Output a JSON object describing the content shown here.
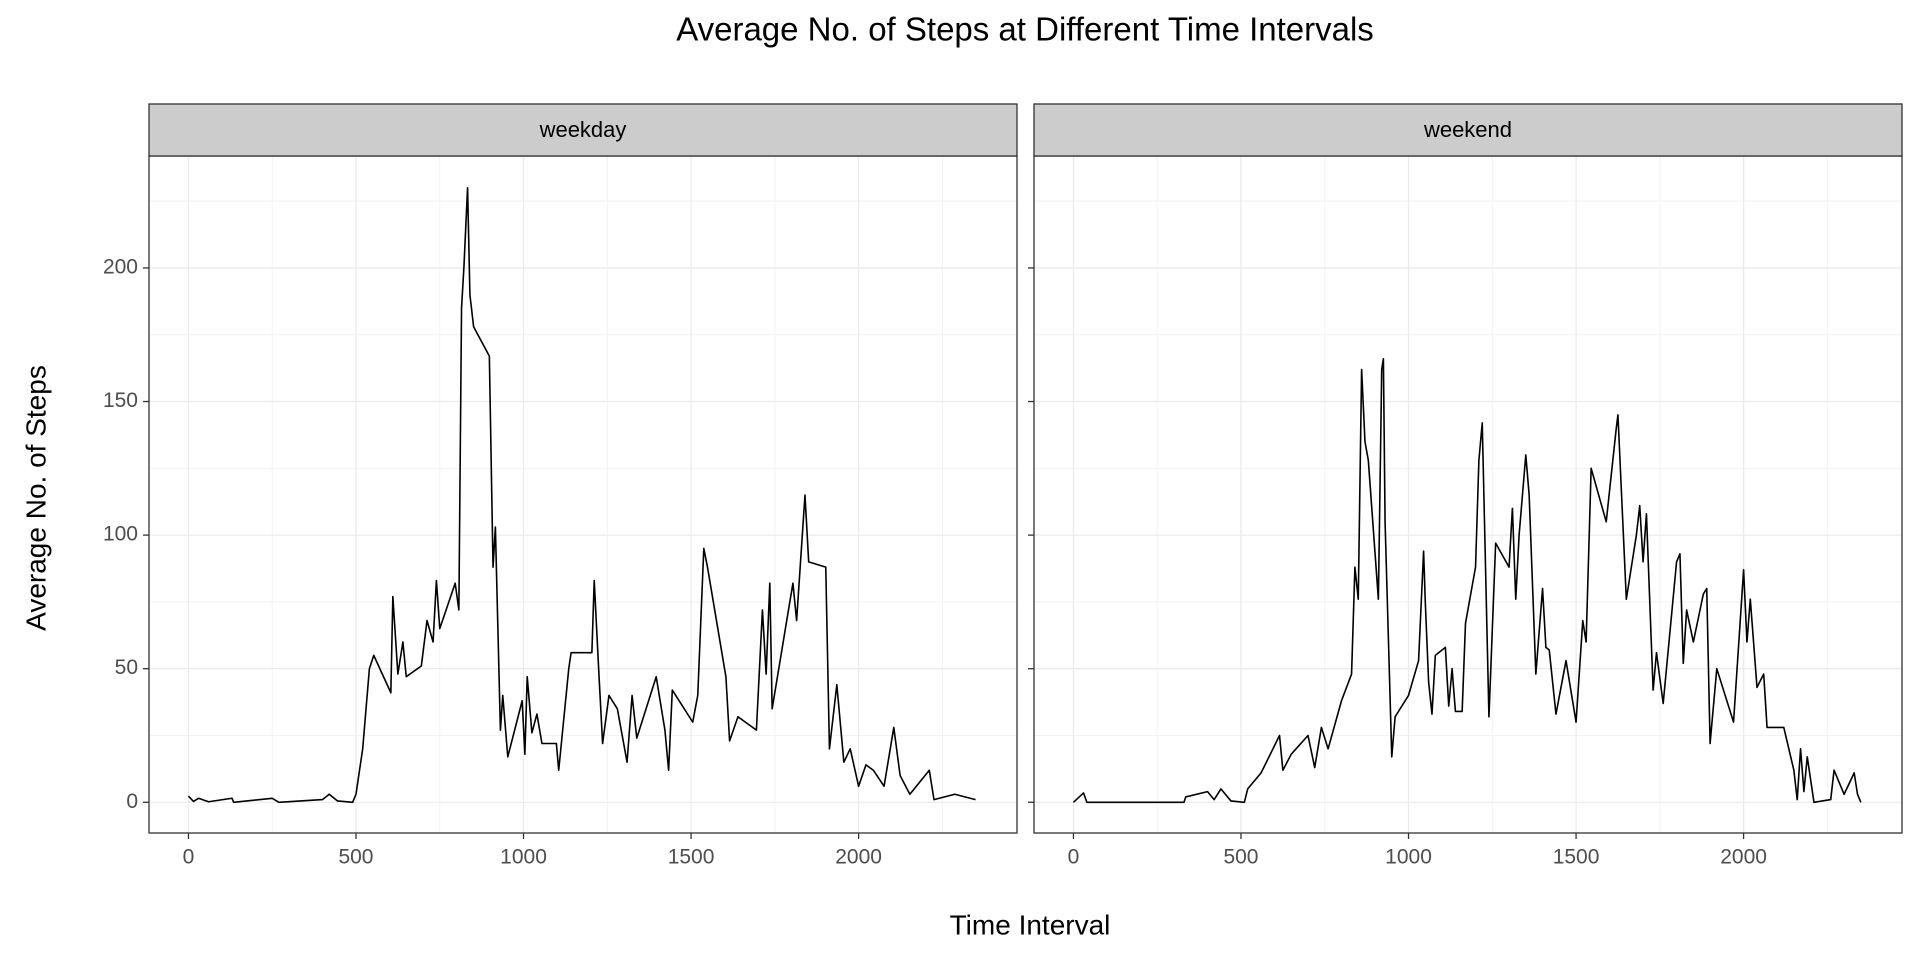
{
  "title": "Average No. of Steps at Different Time Intervals",
  "x_label": "Time Interval",
  "y_label": "Average No. of Steps",
  "chart_data": [
    {
      "type": "line",
      "title": "weekday",
      "color": "#000000",
      "grid": true,
      "x": [
        0,
        15,
        30,
        60,
        130,
        135,
        250,
        270,
        400,
        420,
        445,
        490,
        500,
        520,
        540,
        553,
        604,
        610,
        625,
        640,
        650,
        695,
        712,
        730,
        740,
        750,
        796,
        807,
        815,
        822,
        833,
        840,
        851,
        898,
        909,
        916,
        931,
        938,
        953,
        996,
        1004,
        1011,
        1025,
        1040,
        1055,
        1098,
        1105,
        1135,
        1142,
        1204,
        1211,
        1225,
        1236,
        1255,
        1280,
        1309,
        1324,
        1338,
        1396,
        1422,
        1433,
        1444,
        1505,
        1520,
        1538,
        1549,
        1604,
        1615,
        1640,
        1695,
        1713,
        1724,
        1735,
        1742,
        1804,
        1815,
        1840,
        1851,
        1902,
        1913,
        1935,
        1956,
        1975,
        2000,
        2022,
        2044,
        2076,
        2105,
        2124,
        2153,
        2211,
        2225,
        2287,
        2349
      ],
      "values": [
        2.3,
        0.3,
        1.5,
        0.2,
        1.5,
        0,
        1.5,
        0,
        1,
        3,
        0.5,
        0,
        3,
        20,
        50,
        55,
        41,
        77,
        48,
        60,
        47,
        51,
        68,
        60,
        83,
        65,
        82,
        72,
        185,
        200,
        230,
        190,
        178,
        167,
        88,
        103,
        27,
        40,
        17,
        38,
        18,
        47,
        26,
        33,
        22,
        22,
        12,
        50,
        56,
        56,
        83,
        48,
        22,
        40,
        35,
        15,
        40,
        24,
        47,
        27,
        12,
        42,
        30,
        40,
        95,
        88,
        47,
        23,
        32,
        27,
        72,
        48,
        82,
        35,
        82,
        68,
        115,
        90,
        88,
        20,
        44,
        15,
        20,
        6,
        14,
        12,
        6,
        28,
        10,
        3,
        12,
        1,
        3,
        1
      ],
      "xlim": [
        -117.75,
        2472.75
      ],
      "ylim": [
        -11.5,
        241.9
      ],
      "xticks": [
        0,
        500,
        1000,
        1500,
        2000
      ],
      "yticks": [
        0,
        50,
        100,
        150,
        200
      ],
      "xminor": [
        250,
        750,
        1250,
        1750,
        2250
      ],
      "yminor": [
        25,
        75,
        125,
        175,
        225
      ]
    },
    {
      "type": "line",
      "title": "weekend",
      "color": "#000000",
      "grid": true,
      "x": [
        0,
        30,
        40,
        100,
        330,
        335,
        400,
        420,
        440,
        470,
        510,
        520,
        560,
        615,
        625,
        650,
        700,
        720,
        740,
        760,
        800,
        830,
        840,
        850,
        860,
        870,
        880,
        910,
        920,
        925,
        930,
        950,
        960,
        1000,
        1030,
        1045,
        1050,
        1060,
        1070,
        1080,
        1110,
        1120,
        1130,
        1140,
        1160,
        1170,
        1200,
        1210,
        1220,
        1240,
        1260,
        1300,
        1310,
        1320,
        1330,
        1350,
        1360,
        1380,
        1400,
        1410,
        1420,
        1440,
        1470,
        1500,
        1520,
        1530,
        1545,
        1590,
        1620,
        1625,
        1650,
        1680,
        1690,
        1700,
        1710,
        1730,
        1740,
        1760,
        1800,
        1810,
        1820,
        1830,
        1850,
        1880,
        1890,
        1900,
        1920,
        1970,
        2000,
        2010,
        2020,
        2040,
        2060,
        2070,
        2120,
        2150,
        2160,
        2170,
        2180,
        2190,
        2210,
        2260,
        2270,
        2300,
        2330,
        2340,
        2350
      ],
      "values": [
        0,
        3.5,
        0,
        0,
        0,
        2,
        4,
        1,
        5,
        0.5,
        0,
        5,
        11,
        25,
        12,
        18,
        25,
        13,
        28,
        20,
        38,
        48,
        88,
        76,
        162,
        135,
        128,
        76,
        162,
        166,
        105,
        17,
        32,
        40,
        53,
        94,
        75,
        45,
        33,
        55,
        58,
        36,
        50,
        34,
        34,
        67,
        88,
        128,
        142,
        32,
        97,
        88,
        110,
        76,
        100,
        130,
        115,
        48,
        80,
        58,
        57,
        33,
        53,
        30,
        68,
        60,
        125,
        105,
        140,
        145,
        76,
        100,
        111,
        90,
        108,
        42,
        56,
        37,
        90,
        93,
        52,
        72,
        60,
        78,
        80,
        22,
        50,
        30,
        87,
        60,
        76,
        43,
        48,
        28,
        28,
        12,
        1,
        20,
        4,
        17,
        0,
        1,
        12,
        3,
        11,
        3,
        0
      ],
      "xlim": [
        -117.75,
        2472.75
      ],
      "ylim": [
        -11.5,
        241.9
      ],
      "xticks": [
        0,
        500,
        1000,
        1500,
        2000
      ],
      "yticks": [
        0,
        50,
        100,
        150,
        200
      ],
      "xminor": [
        250,
        750,
        1250,
        1750,
        2250
      ],
      "yminor": [
        25,
        75,
        125,
        175,
        225
      ]
    }
  ]
}
